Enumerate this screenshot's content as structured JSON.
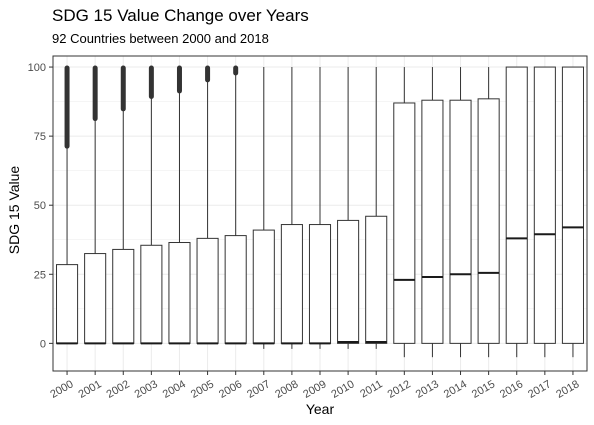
{
  "chart_data": {
    "type": "box",
    "title": "SDG 15 Value Change over Years",
    "subtitle": "92 Countries between 2000 and 2018",
    "xlabel": "Year",
    "ylabel": "SDG 15 Value",
    "ylim": [
      -10,
      104
    ],
    "yticks": [
      0,
      25,
      50,
      75,
      100
    ],
    "grid": true,
    "categories": [
      "2000",
      "2001",
      "2002",
      "2003",
      "2004",
      "2005",
      "2006",
      "2007",
      "2008",
      "2009",
      "2010",
      "2011",
      "2012",
      "2013",
      "2014",
      "2015",
      "2016",
      "2017",
      "2018"
    ],
    "boxes": [
      {
        "year": "2000",
        "whisker_low": 0,
        "q1": 0,
        "median": 0,
        "q3": 28.5,
        "whisker_high": 71,
        "outliers_from": 71,
        "outliers_to": 100
      },
      {
        "year": "2001",
        "whisker_low": 0,
        "q1": 0,
        "median": 0,
        "q3": 32.5,
        "whisker_high": 81,
        "outliers_from": 81,
        "outliers_to": 100
      },
      {
        "year": "2002",
        "whisker_low": 0,
        "q1": 0,
        "median": 0,
        "q3": 34,
        "whisker_high": 84.5,
        "outliers_from": 84.5,
        "outliers_to": 100
      },
      {
        "year": "2003",
        "whisker_low": 0,
        "q1": 0,
        "median": 0,
        "q3": 35.5,
        "whisker_high": 89,
        "outliers_from": 89,
        "outliers_to": 100
      },
      {
        "year": "2004",
        "whisker_low": 0,
        "q1": 0,
        "median": 0,
        "q3": 36.5,
        "whisker_high": 91,
        "outliers_from": 91,
        "outliers_to": 100
      },
      {
        "year": "2005",
        "whisker_low": 0,
        "q1": 0,
        "median": 0,
        "q3": 38,
        "whisker_high": 95,
        "outliers_from": 95,
        "outliers_to": 100
      },
      {
        "year": "2006",
        "whisker_low": 0,
        "q1": 0,
        "median": 0,
        "q3": 39,
        "whisker_high": 97.5,
        "outliers_from": 97.5,
        "outliers_to": 100
      },
      {
        "year": "2007",
        "whisker_low": -2,
        "q1": 0,
        "median": 0,
        "q3": 41,
        "whisker_high": 100
      },
      {
        "year": "2008",
        "whisker_low": -2,
        "q1": 0,
        "median": 0,
        "q3": 43,
        "whisker_high": 100
      },
      {
        "year": "2009",
        "whisker_low": -2,
        "q1": 0,
        "median": 0,
        "q3": 43,
        "whisker_high": 100
      },
      {
        "year": "2010",
        "whisker_low": -2,
        "q1": 0,
        "median": 0.5,
        "q3": 44.5,
        "whisker_high": 100
      },
      {
        "year": "2011",
        "whisker_low": -2,
        "q1": 0,
        "median": 0.5,
        "q3": 46,
        "whisker_high": 100
      },
      {
        "year": "2012",
        "whisker_low": -5,
        "q1": 0,
        "median": 23,
        "q3": 87,
        "whisker_high": 100
      },
      {
        "year": "2013",
        "whisker_low": -5,
        "q1": 0,
        "median": 24,
        "q3": 88,
        "whisker_high": 100
      },
      {
        "year": "2014",
        "whisker_low": -5,
        "q1": 0,
        "median": 25,
        "q3": 88,
        "whisker_high": 100
      },
      {
        "year": "2015",
        "whisker_low": -5,
        "q1": 0,
        "median": 25.5,
        "q3": 88.5,
        "whisker_high": 100
      },
      {
        "year": "2016",
        "whisker_low": -5,
        "q1": 0,
        "median": 38,
        "q3": 100,
        "whisker_high": 100
      },
      {
        "year": "2017",
        "whisker_low": -5,
        "q1": 0,
        "median": 39.5,
        "q3": 100,
        "whisker_high": 100
      },
      {
        "year": "2018",
        "whisker_low": -5,
        "q1": 0,
        "median": 42,
        "q3": 100,
        "whisker_high": 100
      }
    ],
    "colors": {
      "box_stroke": "#333333",
      "median": "#1a1a1a",
      "outlier": "#333333",
      "grid": "#ebebeb",
      "panel_border": "#333333",
      "tick_text": "#4d4d4d"
    }
  }
}
